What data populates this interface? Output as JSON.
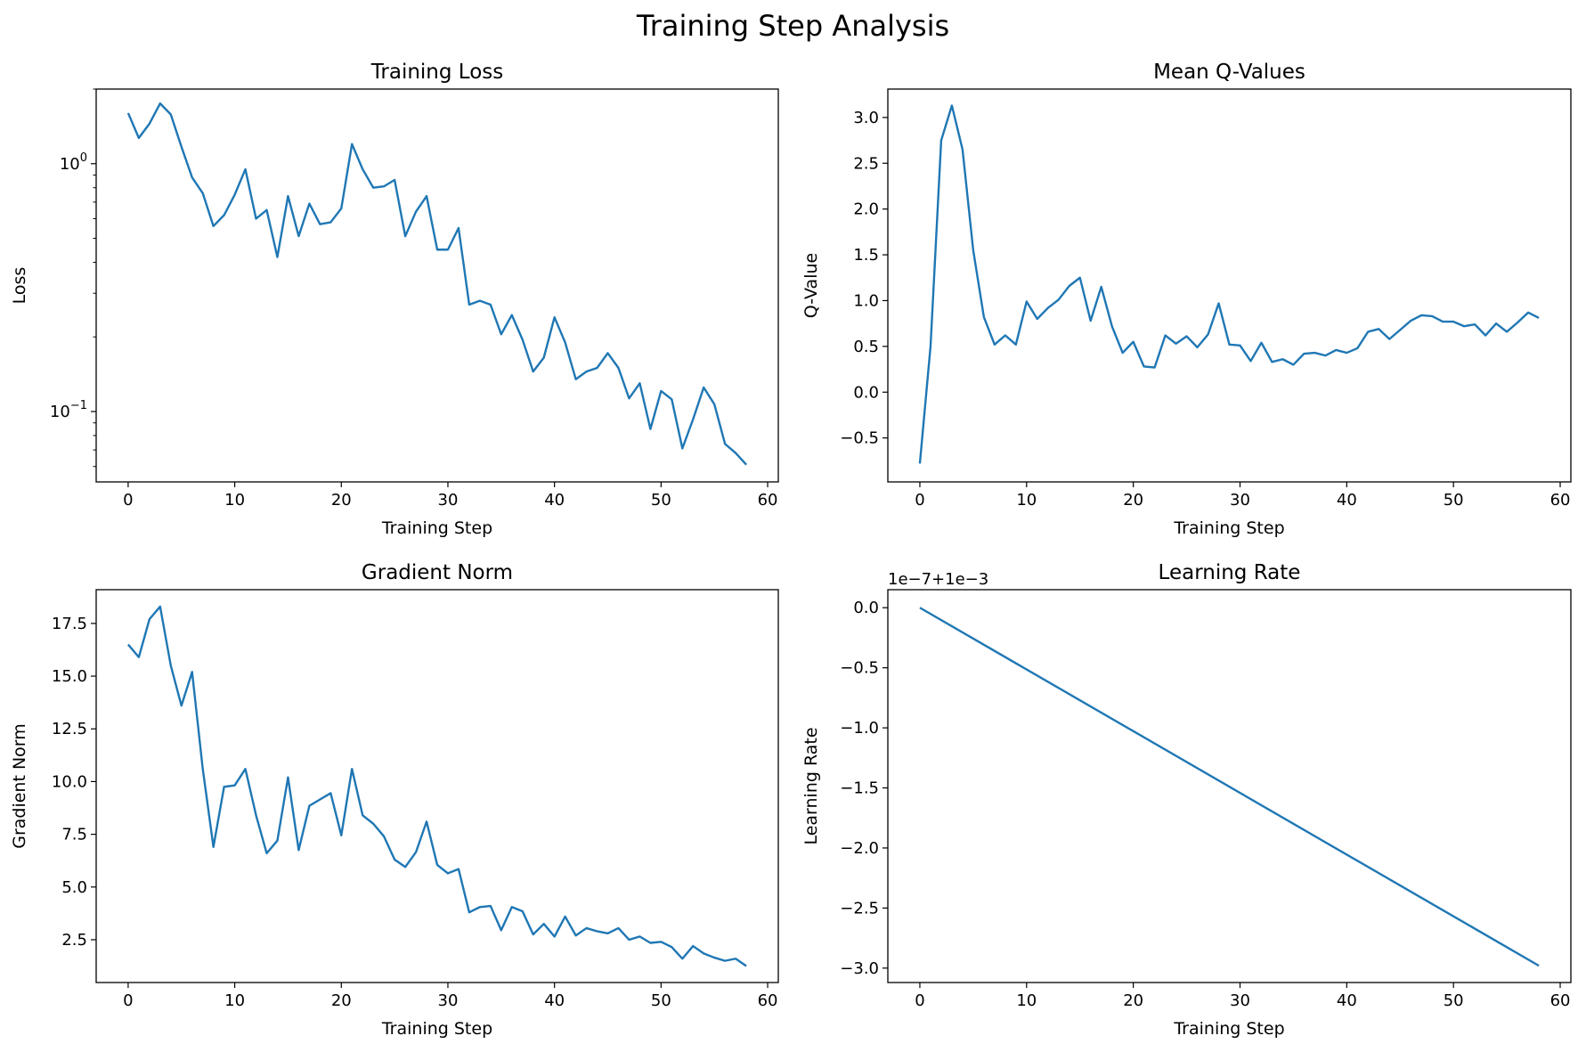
{
  "figure": {
    "title": "Training Step Analysis"
  },
  "chart_data": [
    {
      "type": "line",
      "title": "Training Loss",
      "xlabel": "Training Step",
      "ylabel": "Loss",
      "yscale": "log",
      "xlim": [
        -3,
        61
      ],
      "ylim": [
        0.052,
        2.0
      ],
      "xticks": [
        0,
        10,
        20,
        30,
        40,
        50,
        60
      ],
      "yticks": [
        {
          "value": 1.0,
          "base": "10",
          "exp": "0"
        },
        {
          "value": 0.1,
          "base": "10",
          "exp": "−1"
        }
      ],
      "color": "#1f77b4",
      "series": [
        {
          "x": [
            0,
            1,
            2,
            3,
            4,
            5,
            6,
            7,
            8,
            9,
            10,
            11,
            12,
            13,
            14,
            15,
            16,
            17,
            18,
            19,
            20,
            21,
            22,
            23,
            24,
            25,
            26,
            27,
            28,
            29,
            30,
            31,
            32,
            33,
            34,
            35,
            36,
            37,
            38,
            39,
            40,
            41,
            42,
            43,
            44,
            45,
            46,
            47,
            48,
            49,
            50,
            51,
            52,
            53,
            54,
            55,
            56,
            57,
            58
          ],
          "y": [
            1.6,
            1.27,
            1.45,
            1.75,
            1.58,
            1.17,
            0.88,
            0.76,
            0.56,
            0.62,
            0.75,
            0.95,
            0.6,
            0.65,
            0.42,
            0.74,
            0.51,
            0.69,
            0.57,
            0.58,
            0.66,
            1.2,
            0.95,
            0.8,
            0.81,
            0.86,
            0.51,
            0.64,
            0.74,
            0.45,
            0.45,
            0.55,
            0.27,
            0.28,
            0.27,
            0.205,
            0.245,
            0.195,
            0.145,
            0.165,
            0.24,
            0.19,
            0.135,
            0.145,
            0.15,
            0.172,
            0.15,
            0.113,
            0.13,
            0.085,
            0.121,
            0.112,
            0.071,
            0.093,
            0.125,
            0.107,
            0.074,
            0.068,
            0.061
          ]
        }
      ]
    },
    {
      "type": "line",
      "title": "Mean Q-Values",
      "xlabel": "Training Step",
      "ylabel": "Q-Value",
      "xlim": [
        -3,
        61
      ],
      "ylim": [
        -0.98,
        3.31
      ],
      "xticks": [
        0,
        10,
        20,
        30,
        40,
        50,
        60
      ],
      "yticks": [
        "−0.5",
        "0.0",
        "0.5",
        "1.0",
        "1.5",
        "2.0",
        "2.5",
        "3.0"
      ],
      "color": "#1f77b4",
      "series": [
        {
          "x": [
            0,
            1,
            2,
            3,
            4,
            5,
            6,
            7,
            8,
            9,
            10,
            11,
            12,
            13,
            14,
            15,
            16,
            17,
            18,
            19,
            20,
            21,
            22,
            23,
            24,
            25,
            26,
            27,
            28,
            29,
            30,
            31,
            32,
            33,
            34,
            35,
            36,
            37,
            38,
            39,
            40,
            41,
            42,
            43,
            44,
            45,
            46,
            47,
            48,
            49,
            50,
            51,
            52,
            53,
            54,
            55,
            56,
            57,
            58
          ],
          "y": [
            -0.78,
            0.5,
            2.75,
            3.13,
            2.65,
            1.55,
            0.82,
            0.52,
            0.62,
            0.52,
            0.99,
            0.8,
            0.92,
            1.01,
            1.16,
            1.25,
            0.78,
            1.15,
            0.72,
            0.43,
            0.55,
            0.28,
            0.27,
            0.62,
            0.53,
            0.61,
            0.49,
            0.63,
            0.97,
            0.52,
            0.51,
            0.34,
            0.54,
            0.33,
            0.36,
            0.3,
            0.42,
            0.43,
            0.4,
            0.46,
            0.43,
            0.48,
            0.66,
            0.69,
            0.58,
            0.68,
            0.78,
            0.84,
            0.83,
            0.77,
            0.77,
            0.72,
            0.74,
            0.62,
            0.75,
            0.66,
            0.76,
            0.87,
            0.81
          ]
        }
      ]
    },
    {
      "type": "line",
      "title": "Gradient Norm",
      "xlabel": "Training Step",
      "ylabel": "Gradient Norm",
      "xlim": [
        -3,
        61
      ],
      "ylim": [
        0.47,
        19.1
      ],
      "xticks": [
        0,
        10,
        20,
        30,
        40,
        50,
        60
      ],
      "yticks": [
        "2.5",
        "5.0",
        "7.5",
        "10.0",
        "12.5",
        "15.0",
        "17.5"
      ],
      "color": "#1f77b4",
      "series": [
        {
          "x": [
            0,
            1,
            2,
            3,
            4,
            5,
            6,
            7,
            8,
            9,
            10,
            11,
            12,
            13,
            14,
            15,
            16,
            17,
            18,
            19,
            20,
            21,
            22,
            23,
            24,
            25,
            26,
            27,
            28,
            29,
            30,
            31,
            32,
            33,
            34,
            35,
            36,
            37,
            38,
            39,
            40,
            41,
            42,
            43,
            44,
            45,
            46,
            47,
            48,
            49,
            50,
            51,
            52,
            53,
            54,
            55,
            56,
            57,
            58
          ],
          "y": [
            16.5,
            15.9,
            17.7,
            18.3,
            15.5,
            13.6,
            15.2,
            10.6,
            6.9,
            9.75,
            9.82,
            10.6,
            8.4,
            6.6,
            7.2,
            10.2,
            6.75,
            8.85,
            9.15,
            9.45,
            7.45,
            10.6,
            8.4,
            8.0,
            7.4,
            6.3,
            5.95,
            6.65,
            8.1,
            6.05,
            5.65,
            5.85,
            3.8,
            4.05,
            4.1,
            2.95,
            4.05,
            3.85,
            2.75,
            3.25,
            2.65,
            3.6,
            2.7,
            3.05,
            2.9,
            2.8,
            3.05,
            2.5,
            2.65,
            2.35,
            2.4,
            2.15,
            1.6,
            2.2,
            1.85,
            1.65,
            1.5,
            1.6,
            1.25
          ]
        }
      ]
    },
    {
      "type": "line",
      "title": "Learning Rate",
      "xlabel": "Training Step",
      "ylabel": "Learning Rate",
      "offset_text": "1e−7+1e−3",
      "xlim": [
        -3,
        61
      ],
      "ylim": [
        -3.12,
        0.15
      ],
      "xticks": [
        0,
        10,
        20,
        30,
        40,
        50,
        60
      ],
      "yticks": [
        "−3.0",
        "−2.5",
        "−2.0",
        "−1.5",
        "−1.0",
        "−0.5",
        "0.0"
      ],
      "color": "#1f77b4",
      "series": [
        {
          "x": [
            0,
            58
          ],
          "y": [
            0.0,
            -2.98
          ]
        }
      ]
    }
  ]
}
